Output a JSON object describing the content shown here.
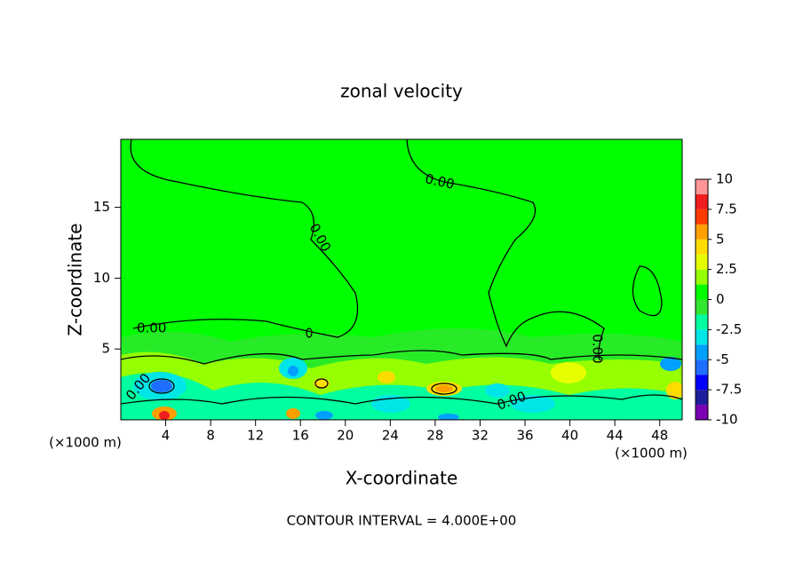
{
  "chart_data": {
    "type": "contour",
    "title": "zonal velocity",
    "xlabel": "X-coordinate",
    "ylabel": "Z-coordinate",
    "x_unit_label": "(×1000 m)",
    "footer": "CONTOUR INTERVAL = 4.000E+00",
    "annotations": [
      "0.00",
      "0.00",
      "0.00",
      "0.00",
      "0.00",
      "0.00"
    ],
    "xlim": [
      0,
      50
    ],
    "xticks": [
      4,
      8,
      12,
      16,
      20,
      24,
      28,
      32,
      36,
      40,
      44,
      48
    ],
    "ylim": [
      0,
      19.8
    ],
    "yticks": [
      5,
      10,
      15
    ],
    "clim": [
      -10,
      10
    ],
    "cticks": [
      10,
      7.5,
      5,
      2.5,
      0,
      -2.5,
      -5,
      -7.5,
      -10
    ],
    "colorbar_colors": [
      "#7a00b4",
      "#1e1e9b",
      "#0000ff",
      "#1e6eff",
      "#00a0ff",
      "#00e6e6",
      "#00ffa0",
      "#32e632",
      "#00ff00",
      "#96ff00",
      "#e6ff00",
      "#ffdc00",
      "#ffa000",
      "#ff3c00",
      "#f01e1e",
      "#ff9696"
    ]
  }
}
